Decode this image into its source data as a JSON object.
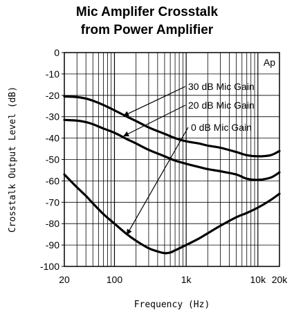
{
  "chart_data": {
    "type": "line",
    "title_lines": [
      "Mic Amplifer Crosstalk",
      "from Power Amplifier"
    ],
    "xlabel": "Frequency (Hz)",
    "ylabel": "Crosstalk Output Level (dB)",
    "x_scale": "log",
    "xlim": [
      20,
      20000
    ],
    "ylim": [
      -100,
      0
    ],
    "grid": true,
    "x_ticks": [
      {
        "value": 20,
        "label": "20"
      },
      {
        "value": 100,
        "label": "100"
      },
      {
        "value": 1000,
        "label": "1k"
      },
      {
        "value": 10000,
        "label": "10k"
      },
      {
        "value": 20000,
        "label": "20k"
      }
    ],
    "y_ticks": [
      0,
      -10,
      -20,
      -30,
      -40,
      -50,
      -60,
      -70,
      -80,
      -90,
      -100
    ],
    "y_tick_labels": [
      "0",
      "-10",
      "-20",
      "-30",
      "-40",
      "-50",
      "-60",
      "-70",
      "-80",
      "-90",
      "-100"
    ],
    "corner_label": "Ap",
    "series": [
      {
        "name": "30 dB Mic Gain",
        "x": [
          20,
          30,
          40,
          50,
          70,
          100,
          150,
          200,
          300,
          500,
          700,
          1000,
          1500,
          2000,
          3000,
          5000,
          7000,
          10000,
          15000,
          20000
        ],
        "y": [
          -20.5,
          -20.8,
          -21.5,
          -22.5,
          -24.5,
          -27,
          -30,
          -32,
          -35,
          -38,
          -40,
          -41.5,
          -42.5,
          -43.5,
          -44.5,
          -46.5,
          -48,
          -48.5,
          -48,
          -46
        ]
      },
      {
        "name": "20 dB Mic Gain",
        "x": [
          20,
          30,
          40,
          50,
          70,
          100,
          150,
          200,
          300,
          500,
          700,
          1000,
          1500,
          2000,
          3000,
          5000,
          7000,
          10000,
          15000,
          20000
        ],
        "y": [
          -31.5,
          -31.8,
          -32.5,
          -33.5,
          -35.5,
          -37.5,
          -40.5,
          -42.5,
          -45.5,
          -48.5,
          -50.5,
          -52,
          -53.5,
          -54.5,
          -55.5,
          -57,
          -59,
          -59.5,
          -58.5,
          -56
        ]
      },
      {
        "name": "0 dB Mic Gain",
        "x": [
          20,
          30,
          40,
          50,
          70,
          100,
          150,
          200,
          300,
          400,
          500,
          600,
          700,
          1000,
          1500,
          2000,
          3000,
          5000,
          7000,
          10000,
          15000,
          20000
        ],
        "y": [
          -57,
          -63,
          -67,
          -70.5,
          -75.5,
          -80,
          -85,
          -88,
          -91.5,
          -93,
          -93.8,
          -93.5,
          -92.5,
          -90,
          -87,
          -84.5,
          -81,
          -77,
          -75,
          -72.5,
          -69,
          -66
        ]
      }
    ],
    "annotations": [
      {
        "text": "30 dB Mic Gain",
        "series": "30 dB Mic Gain",
        "arrow_to": {
          "x": 135,
          "y": -29.5
        }
      },
      {
        "text": "20 dB Mic Gain",
        "series": "20 dB Mic Gain",
        "arrow_to": {
          "x": 135,
          "y": -39
        }
      },
      {
        "text": "0 dB Mic Gain",
        "series": "0 dB Mic Gain",
        "arrow_to": {
          "x": 150,
          "y": -85
        }
      }
    ]
  }
}
